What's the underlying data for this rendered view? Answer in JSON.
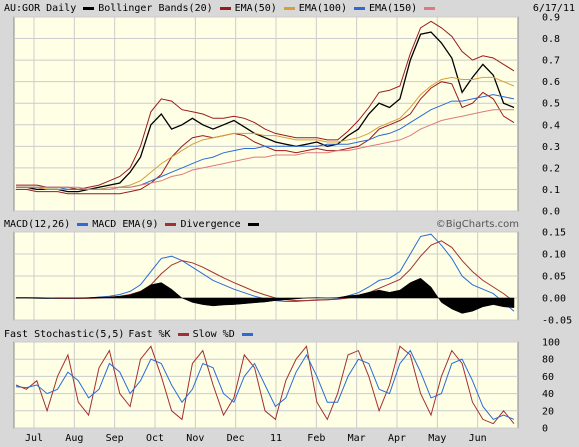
{
  "header": {
    "symbol_label": "AU:GOR Daily",
    "bollinger_label": "Bollinger Bands(20)",
    "ema50_label": "EMA(50)",
    "ema100_label": "EMA(100)",
    "ema150_label": "EMA(150)",
    "date": "6/17/11"
  },
  "macd_header": {
    "macd_label": "MACD(12,26)",
    "ema_label": "MACD EMA(9)",
    "divergence_label": "Divergence"
  },
  "stoch_header": {
    "title": "Fast Stochastic(5,5)",
    "k_label": "Fast %K",
    "d_label": "Slow %D"
  },
  "watermark": "©BigCharts.com",
  "colors": {
    "background": "#ffffe6",
    "grid": "#cccccc",
    "price": "#000000",
    "bollinger": "#9b1b1b",
    "ema50": "#d4a037",
    "ema100": "#2b6bd6",
    "ema150": "#e07a7a",
    "macd": "#2b6bd6",
    "macd_ema": "#a33030",
    "stoch_k": "#a33030",
    "stoch_d": "#2b6bd6"
  },
  "chart_data": [
    {
      "type": "line",
      "panel": "price",
      "x_labels": [
        "Jul",
        "Aug",
        "Sep",
        "Oct",
        "Nov",
        "Dec",
        "11",
        "Feb",
        "Mar",
        "Apr",
        "May",
        "Jun"
      ],
      "ylim": [
        0,
        0.9
      ],
      "yticks": [
        "0.0",
        "0.1",
        "0.2",
        "0.3",
        "0.4",
        "0.5",
        "0.6",
        "0.7",
        "0.8",
        "0.9"
      ],
      "grid": true,
      "series": [
        {
          "name": "AU:GOR Daily",
          "values": [
            0.11,
            0.11,
            0.1,
            0.1,
            0.1,
            0.09,
            0.09,
            0.1,
            0.11,
            0.12,
            0.13,
            0.18,
            0.25,
            0.4,
            0.45,
            0.38,
            0.4,
            0.43,
            0.4,
            0.38,
            0.4,
            0.42,
            0.39,
            0.36,
            0.34,
            0.32,
            0.31,
            0.3,
            0.31,
            0.32,
            0.3,
            0.31,
            0.35,
            0.38,
            0.45,
            0.5,
            0.48,
            0.52,
            0.7,
            0.82,
            0.83,
            0.78,
            0.71,
            0.55,
            0.62,
            0.68,
            0.63,
            0.5,
            0.48
          ]
        },
        {
          "name": "Bollinger Upper",
          "values": [
            0.12,
            0.12,
            0.12,
            0.11,
            0.11,
            0.11,
            0.1,
            0.11,
            0.12,
            0.14,
            0.16,
            0.2,
            0.3,
            0.46,
            0.52,
            0.51,
            0.47,
            0.46,
            0.45,
            0.43,
            0.43,
            0.44,
            0.43,
            0.41,
            0.38,
            0.36,
            0.35,
            0.34,
            0.34,
            0.34,
            0.33,
            0.33,
            0.37,
            0.42,
            0.48,
            0.55,
            0.56,
            0.58,
            0.73,
            0.85,
            0.88,
            0.85,
            0.81,
            0.74,
            0.7,
            0.72,
            0.71,
            0.68,
            0.65
          ]
        },
        {
          "name": "Bollinger Lower",
          "values": [
            0.1,
            0.1,
            0.09,
            0.09,
            0.09,
            0.08,
            0.08,
            0.08,
            0.08,
            0.08,
            0.08,
            0.09,
            0.1,
            0.13,
            0.17,
            0.25,
            0.3,
            0.34,
            0.35,
            0.34,
            0.35,
            0.36,
            0.35,
            0.32,
            0.3,
            0.28,
            0.28,
            0.27,
            0.28,
            0.29,
            0.28,
            0.28,
            0.29,
            0.3,
            0.33,
            0.38,
            0.4,
            0.42,
            0.45,
            0.52,
            0.57,
            0.6,
            0.59,
            0.48,
            0.5,
            0.55,
            0.52,
            0.44,
            0.41
          ]
        },
        {
          "name": "EMA(50)",
          "values": [
            0.11,
            0.11,
            0.11,
            0.1,
            0.1,
            0.1,
            0.1,
            0.1,
            0.1,
            0.11,
            0.11,
            0.12,
            0.14,
            0.18,
            0.22,
            0.25,
            0.28,
            0.31,
            0.33,
            0.34,
            0.35,
            0.36,
            0.36,
            0.36,
            0.35,
            0.35,
            0.34,
            0.33,
            0.33,
            0.33,
            0.32,
            0.32,
            0.33,
            0.34,
            0.36,
            0.39,
            0.41,
            0.43,
            0.48,
            0.54,
            0.58,
            0.61,
            0.62,
            0.61,
            0.61,
            0.62,
            0.62,
            0.6,
            0.58
          ]
        },
        {
          "name": "EMA(100)",
          "values": [
            0.11,
            0.11,
            0.11,
            0.11,
            0.11,
            0.1,
            0.1,
            0.1,
            0.1,
            0.1,
            0.11,
            0.11,
            0.12,
            0.14,
            0.16,
            0.18,
            0.2,
            0.22,
            0.24,
            0.25,
            0.27,
            0.28,
            0.29,
            0.29,
            0.3,
            0.3,
            0.3,
            0.3,
            0.3,
            0.3,
            0.31,
            0.31,
            0.31,
            0.32,
            0.33,
            0.35,
            0.36,
            0.38,
            0.41,
            0.44,
            0.47,
            0.49,
            0.51,
            0.51,
            0.52,
            0.53,
            0.54,
            0.53,
            0.52
          ]
        },
        {
          "name": "EMA(150)",
          "values": [
            0.11,
            0.11,
            0.11,
            0.11,
            0.11,
            0.11,
            0.11,
            0.1,
            0.1,
            0.1,
            0.11,
            0.11,
            0.12,
            0.13,
            0.14,
            0.16,
            0.17,
            0.19,
            0.2,
            0.21,
            0.22,
            0.23,
            0.24,
            0.25,
            0.25,
            0.26,
            0.26,
            0.26,
            0.27,
            0.27,
            0.27,
            0.28,
            0.28,
            0.29,
            0.3,
            0.31,
            0.32,
            0.33,
            0.35,
            0.38,
            0.4,
            0.42,
            0.43,
            0.44,
            0.45,
            0.46,
            0.47,
            0.47,
            0.47
          ]
        }
      ]
    },
    {
      "type": "line",
      "panel": "macd",
      "ylim": [
        -0.05,
        0.15
      ],
      "yticks": [
        "0.15",
        "0.10",
        "0.05",
        "0.00",
        "-0.05"
      ],
      "grid": true,
      "series": [
        {
          "name": "MACD(12,26)",
          "values": [
            0.001,
            0.001,
            0.0,
            -0.001,
            -0.001,
            -0.001,
            -0.001,
            0.0,
            0.002,
            0.004,
            0.008,
            0.015,
            0.03,
            0.06,
            0.09,
            0.095,
            0.085,
            0.07,
            0.055,
            0.04,
            0.03,
            0.02,
            0.012,
            0.004,
            -0.002,
            -0.006,
            -0.008,
            -0.008,
            -0.006,
            -0.004,
            -0.004,
            -0.002,
            0.005,
            0.012,
            0.025,
            0.04,
            0.045,
            0.06,
            0.1,
            0.14,
            0.145,
            0.12,
            0.09,
            0.05,
            0.03,
            0.02,
            0.01,
            -0.01,
            -0.03
          ]
        },
        {
          "name": "MACD EMA(9)",
          "values": [
            0.001,
            0.001,
            0.001,
            0.0,
            -0.001,
            -0.001,
            -0.001,
            -0.001,
            0.0,
            0.002,
            0.004,
            0.008,
            0.015,
            0.03,
            0.055,
            0.075,
            0.085,
            0.08,
            0.07,
            0.058,
            0.046,
            0.035,
            0.025,
            0.015,
            0.007,
            0.0,
            -0.004,
            -0.006,
            -0.006,
            -0.005,
            -0.004,
            -0.003,
            0.0,
            0.005,
            0.012,
            0.022,
            0.032,
            0.042,
            0.065,
            0.095,
            0.12,
            0.13,
            0.115,
            0.085,
            0.06,
            0.04,
            0.025,
            0.01,
            -0.008
          ]
        },
        {
          "name": "Divergence",
          "values": [
            0.0,
            0.0,
            -0.001,
            -0.001,
            0.0,
            0.0,
            0.0,
            0.001,
            0.002,
            0.002,
            0.004,
            0.007,
            0.015,
            0.03,
            0.035,
            0.02,
            0.0,
            -0.01,
            -0.015,
            -0.018,
            -0.016,
            -0.015,
            -0.013,
            -0.011,
            -0.009,
            -0.006,
            -0.004,
            -0.002,
            0.0,
            0.001,
            0.0,
            0.001,
            0.005,
            0.007,
            0.013,
            0.018,
            0.013,
            0.018,
            0.035,
            0.045,
            0.025,
            -0.01,
            -0.025,
            -0.035,
            -0.03,
            -0.02,
            -0.015,
            -0.02,
            -0.022
          ]
        }
      ]
    },
    {
      "type": "line",
      "panel": "stochastic",
      "ylim": [
        0,
        100
      ],
      "yticks": [
        "100",
        "80",
        "60",
        "40",
        "20",
        "0"
      ],
      "grid": true,
      "series": [
        {
          "name": "Fast %K",
          "values": [
            50,
            45,
            55,
            20,
            60,
            85,
            30,
            15,
            70,
            90,
            40,
            25,
            80,
            95,
            60,
            20,
            10,
            75,
            90,
            50,
            15,
            35,
            85,
            70,
            20,
            10,
            55,
            80,
            95,
            30,
            10,
            40,
            85,
            90,
            60,
            20,
            50,
            95,
            85,
            40,
            15,
            60,
            90,
            75,
            30,
            10,
            5,
            20,
            5
          ]
        },
        {
          "name": "Slow %D",
          "values": [
            48,
            47,
            50,
            40,
            45,
            65,
            55,
            35,
            45,
            75,
            65,
            40,
            55,
            80,
            75,
            50,
            30,
            45,
            75,
            70,
            40,
            30,
            60,
            75,
            50,
            25,
            35,
            65,
            85,
            60,
            30,
            30,
            60,
            80,
            75,
            45,
            40,
            75,
            90,
            65,
            35,
            40,
            75,
            80,
            55,
            25,
            10,
            15,
            10
          ]
        }
      ]
    }
  ]
}
